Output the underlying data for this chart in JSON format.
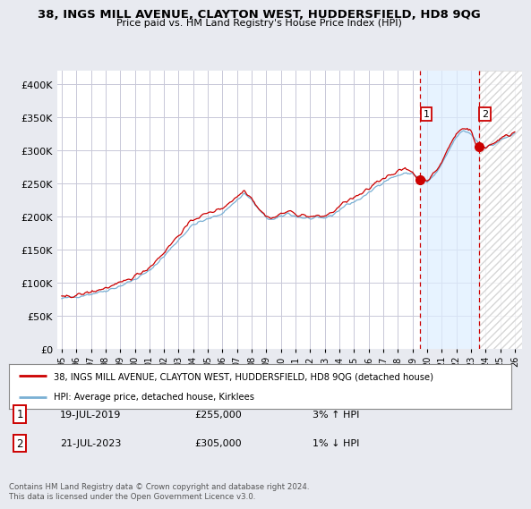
{
  "title": "38, INGS MILL AVENUE, CLAYTON WEST, HUDDERSFIELD, HD8 9QG",
  "subtitle": "Price paid vs. HM Land Registry's House Price Index (HPI)",
  "ylabel_ticks": [
    "£0",
    "£50K",
    "£100K",
    "£150K",
    "£200K",
    "£250K",
    "£300K",
    "£350K",
    "£400K"
  ],
  "ytick_values": [
    0,
    50000,
    100000,
    150000,
    200000,
    250000,
    300000,
    350000,
    400000
  ],
  "ylim": [
    0,
    420000
  ],
  "xlim_start": 1994.7,
  "xlim_end": 2026.5,
  "hpi_color": "#7ab0d4",
  "price_color": "#cc0000",
  "background_color": "#e8eaf0",
  "plot_bg_color": "#ffffff",
  "grid_color": "#c8c8d8",
  "legend_label_price": "38, INGS MILL AVENUE, CLAYTON WEST, HUDDERSFIELD, HD8 9QG (detached house)",
  "legend_label_hpi": "HPI: Average price, detached house, Kirklees",
  "note1_num": "1",
  "note1_date": "19-JUL-2019",
  "note1_price": "£255,000",
  "note1_hpi": "3% ↑ HPI",
  "note2_num": "2",
  "note2_date": "21-JUL-2023",
  "note2_price": "£305,000",
  "note2_hpi": "1% ↓ HPI",
  "footer": "Contains HM Land Registry data © Crown copyright and database right 2024.\nThis data is licensed under the Open Government Licence v3.0.",
  "xtick_years": [
    1995,
    1996,
    1997,
    1998,
    1999,
    2000,
    2001,
    2002,
    2003,
    2004,
    2005,
    2006,
    2007,
    2008,
    2009,
    2010,
    2011,
    2012,
    2013,
    2014,
    2015,
    2016,
    2017,
    2018,
    2019,
    2020,
    2021,
    2022,
    2023,
    2024,
    2025,
    2026
  ],
  "sale1_x": 2019.54,
  "sale1_y": 255000,
  "sale2_x": 2023.54,
  "sale2_y": 305000,
  "vline1_x": 2019.54,
  "vline2_x": 2023.54,
  "shade_start": 2019.54,
  "shade_end": 2023.54,
  "hatch_start": 2023.54,
  "hatch_end": 2026.5
}
